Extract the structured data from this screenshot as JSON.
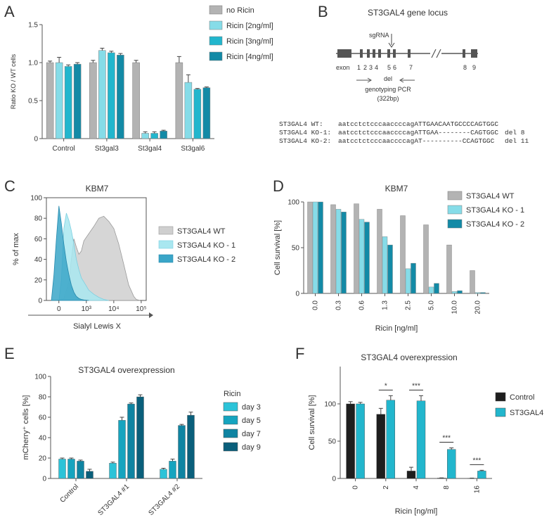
{
  "colors": {
    "grey": "#b3b3b3",
    "light": "#86dce8",
    "mid": "#22b6cd",
    "dark": "#138aa6",
    "darker": "#0b6583",
    "black": "#1e1e1e",
    "axis": "#555555",
    "text": "#333333"
  },
  "panel_labels": {
    "a": "A",
    "b": "B",
    "c": "C",
    "d": "D",
    "e": "E",
    "f": "F"
  },
  "chart_data": [
    {
      "id": "A",
      "type": "bar",
      "ylabel": "Ratio KO / WT cells",
      "ylim": [
        0,
        1.5
      ],
      "yticks": [
        "0",
        "0.5",
        "1.0",
        "1.5"
      ],
      "categories": [
        "Control",
        "St3gal3",
        "St3gal4",
        "St3gal6"
      ],
      "series": [
        {
          "name": "no Ricin",
          "values": [
            1.0,
            1.0,
            1.0,
            1.0
          ],
          "errors": [
            0.02,
            0.03,
            0.03,
            0.08
          ]
        },
        {
          "name": "Ricin [2ng/ml]",
          "values": [
            1.0,
            1.16,
            0.07,
            0.74
          ],
          "errors": [
            0.07,
            0.03,
            0.02,
            0.1
          ]
        },
        {
          "name": "Ricin [3ng/ml]",
          "values": [
            0.95,
            1.13,
            0.07,
            0.65
          ],
          "errors": [
            0.02,
            0.02,
            0.02,
            0.01
          ]
        },
        {
          "name": "Ricin [4ng/ml]",
          "values": [
            0.98,
            1.1,
            0.1,
            0.67
          ],
          "errors": [
            0.02,
            0.02,
            0.01,
            0.01
          ]
        }
      ]
    },
    {
      "id": "D",
      "type": "bar",
      "title": "KBM7",
      "ylabel": "Cell survival [%]",
      "xlabel": "Ricin [ng/ml]",
      "ylim": [
        0,
        100
      ],
      "yticks": [
        "0",
        "50",
        "100"
      ],
      "categories": [
        "0.0",
        "0.3",
        "0.6",
        "1.3",
        "2.5",
        "5.0",
        "10.0",
        "20.0"
      ],
      "series": [
        {
          "name": "ST3GAL4 WT",
          "values": [
            100,
            97,
            98,
            92,
            85,
            75,
            53,
            25
          ]
        },
        {
          "name": "ST3GAL4 KO - 1",
          "values": [
            100,
            92,
            81,
            62,
            27,
            7,
            2,
            1
          ]
        },
        {
          "name": "ST3GAL4 KO - 2",
          "values": [
            100,
            89,
            78,
            53,
            33,
            11,
            3,
            1
          ]
        }
      ]
    },
    {
      "id": "E",
      "type": "bar",
      "title": "ST3GAL4 overexpression",
      "ylabel": "mCherry⁺ cells [%]",
      "ylim": [
        0,
        100
      ],
      "yticks": [
        "0",
        "20",
        "40",
        "60",
        "80",
        "100"
      ],
      "legend_title": "Ricin",
      "categories": [
        "Control",
        "ST3GAL4 #1",
        "ST3GAL4 #2"
      ],
      "series": [
        {
          "name": "day 3",
          "values": [
            19,
            15,
            9
          ],
          "errors": [
            1,
            1,
            1
          ]
        },
        {
          "name": "day 5",
          "values": [
            19,
            57,
            17
          ],
          "errors": [
            1,
            3,
            2
          ]
        },
        {
          "name": "day 7",
          "values": [
            17,
            73,
            52
          ],
          "errors": [
            1,
            1,
            1
          ]
        },
        {
          "name": "day 9",
          "values": [
            7,
            80,
            62
          ],
          "errors": [
            2,
            2,
            3
          ]
        }
      ]
    },
    {
      "id": "F",
      "type": "bar",
      "title": "ST3GAL4 overexpression",
      "ylabel": "Cell survival [%]",
      "xlabel": "Ricin [ng/ml]",
      "ylim": [
        0,
        150
      ],
      "yticks": [
        "0",
        "50",
        "100"
      ],
      "categories": [
        "0",
        "2",
        "4",
        "8",
        "16"
      ],
      "significance": [
        "",
        "*",
        "***",
        "***",
        "***"
      ],
      "series": [
        {
          "name": "Control",
          "values": [
            100,
            86,
            10,
            0.5,
            0.3
          ],
          "errors": [
            3,
            8,
            5,
            0.3,
            0.2
          ]
        },
        {
          "name": "ST3GAL4",
          "values": [
            100,
            105,
            104,
            39,
            10
          ],
          "errors": [
            2,
            6,
            7,
            2,
            1
          ]
        }
      ]
    },
    {
      "id": "C",
      "type": "area",
      "title": "KBM7",
      "ylabel": "% of max",
      "xlabel": "Sialyl Lewis X",
      "ylim": [
        0,
        100
      ],
      "yticks": [
        "0",
        "20",
        "40",
        "60",
        "80",
        "100"
      ],
      "xticks": [
        "0",
        "10³",
        "10⁴",
        "10⁵"
      ],
      "series": [
        {
          "name": "ST3GAL4 WT",
          "x": [
            0.0,
            0.2,
            0.4,
            0.5,
            0.6,
            0.7,
            0.8,
            0.9,
            1.0,
            1.2,
            1.4,
            1.6,
            1.8,
            2.0,
            2.2,
            2.4,
            2.6,
            2.8,
            3.0,
            3.1,
            3.25
          ],
          "y": [
            0,
            2,
            18,
            40,
            60,
            52,
            45,
            48,
            58,
            65,
            72,
            80,
            82,
            77,
            70,
            55,
            35,
            15,
            4,
            1,
            0
          ]
        },
        {
          "name": "ST3GAL4 KO - 1",
          "x": [
            0.0,
            0.1,
            0.2,
            0.3,
            0.4,
            0.5,
            0.6,
            0.7,
            0.8,
            0.9,
            1.0,
            1.2,
            1.4,
            1.6,
            1.8,
            2.0
          ],
          "y": [
            0,
            20,
            70,
            85,
            78,
            68,
            55,
            40,
            30,
            22,
            18,
            10,
            6,
            3,
            1,
            0
          ]
        },
        {
          "name": "ST3GAL4 KO - 2",
          "x": [
            -0.3,
            -0.2,
            -0.1,
            0.0,
            0.1,
            0.2,
            0.3,
            0.4,
            0.5,
            0.6,
            0.7,
            0.8,
            0.9,
            1.0,
            1.2
          ],
          "y": [
            0,
            25,
            60,
            92,
            75,
            55,
            38,
            25,
            15,
            8,
            4,
            2,
            1,
            0.5,
            0
          ]
        }
      ]
    }
  ],
  "panel_b": {
    "title": "ST3GAL4 gene locus",
    "sgrna_label": "sgRNA",
    "exon_label": "exon",
    "exon_numbers": [
      "1",
      "2",
      "3",
      "4",
      "5",
      "6",
      "7",
      "8",
      "9"
    ],
    "del_label": "del",
    "pcr_label": "genotyping PCR",
    "pcr_size": "(322bp)",
    "sequences": [
      {
        "name": "ST3GAL4 WT:",
        "seq": "aatcctctcccaaccccagATTGAACAATGCCCCAGTGGC",
        "note": ""
      },
      {
        "name": "ST3GAL4 KO-1:",
        "seq": "aatcctctcccaaccccagATTGAA--------CAGTGGC",
        "note": "del 8"
      },
      {
        "name": "ST3GAL4 KO-2:",
        "seq": "aatcctctcccaaccccagAT----------CCAGTGGC",
        "note": "del 11"
      }
    ]
  }
}
